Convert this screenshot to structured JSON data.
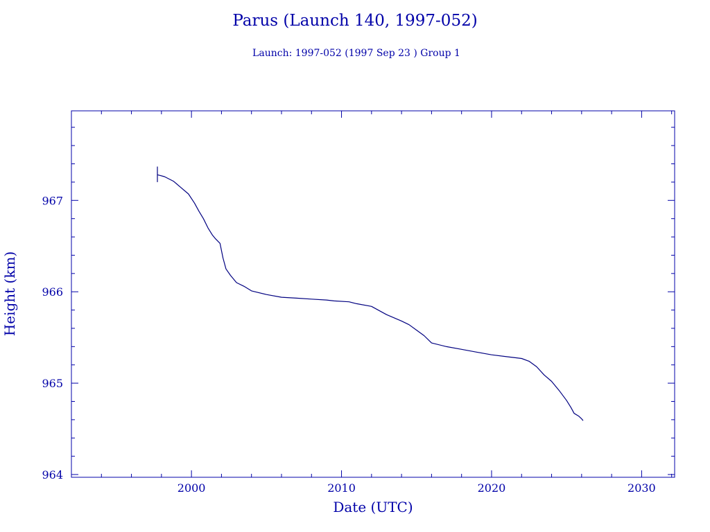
{
  "chart_data": {
    "type": "line",
    "title": "Parus (Launch 140, 1997-052)",
    "subtitle": "Launch: 1997-052  (1997 Sep 23 )  Group 1",
    "xlabel": "Date (UTC)",
    "ylabel": "Height (km)",
    "xlim": [
      1992,
      2032.2
    ],
    "ylim": [
      963.97,
      967.98
    ],
    "x_ticks": [
      2000,
      2010,
      2020,
      2030
    ],
    "y_ticks": [
      964,
      965,
      966,
      967
    ],
    "grid": false,
    "line_color": "#000080",
    "axis_color": "#0000a8",
    "launch_marker": {
      "x": 1997.73,
      "y_range": [
        967.2,
        967.37
      ]
    },
    "series": [
      {
        "x": [
          1997.73,
          1998.2,
          1998.8,
          1999.3,
          1999.8,
          2000.2,
          2000.5,
          2000.8,
          2001.1,
          2001.4,
          2001.6,
          2001.9,
          2002.1,
          2002.3,
          2002.6,
          2003.0,
          2003.5,
          2004.0,
          2005.0,
          2006.0,
          2007.0,
          2008.0,
          2009.0,
          2009.5,
          2010.5,
          2011.0,
          2012.0,
          2013.0,
          2014.0,
          2014.5,
          2015.0,
          2015.5,
          2016.0,
          2017.0,
          2018.0,
          2019.0,
          2020.0,
          2021.0,
          2022.0,
          2022.5,
          2023.0,
          2023.5,
          2024.0,
          2024.5,
          2025.0,
          2025.3,
          2025.5,
          2025.8,
          2026.0,
          2026.1
        ],
        "y": [
          967.28,
          967.26,
          967.21,
          967.14,
          967.07,
          966.97,
          966.88,
          966.8,
          966.7,
          966.62,
          966.58,
          966.53,
          966.37,
          966.25,
          966.18,
          966.1,
          966.06,
          966.01,
          965.97,
          965.94,
          965.93,
          965.92,
          965.91,
          965.9,
          965.89,
          965.87,
          965.84,
          965.75,
          965.68,
          965.64,
          965.58,
          965.52,
          965.44,
          965.4,
          965.37,
          965.34,
          965.31,
          965.29,
          965.27,
          965.24,
          965.18,
          965.09,
          965.02,
          964.92,
          964.81,
          964.73,
          964.67,
          964.64,
          964.61,
          964.59
        ]
      }
    ]
  }
}
